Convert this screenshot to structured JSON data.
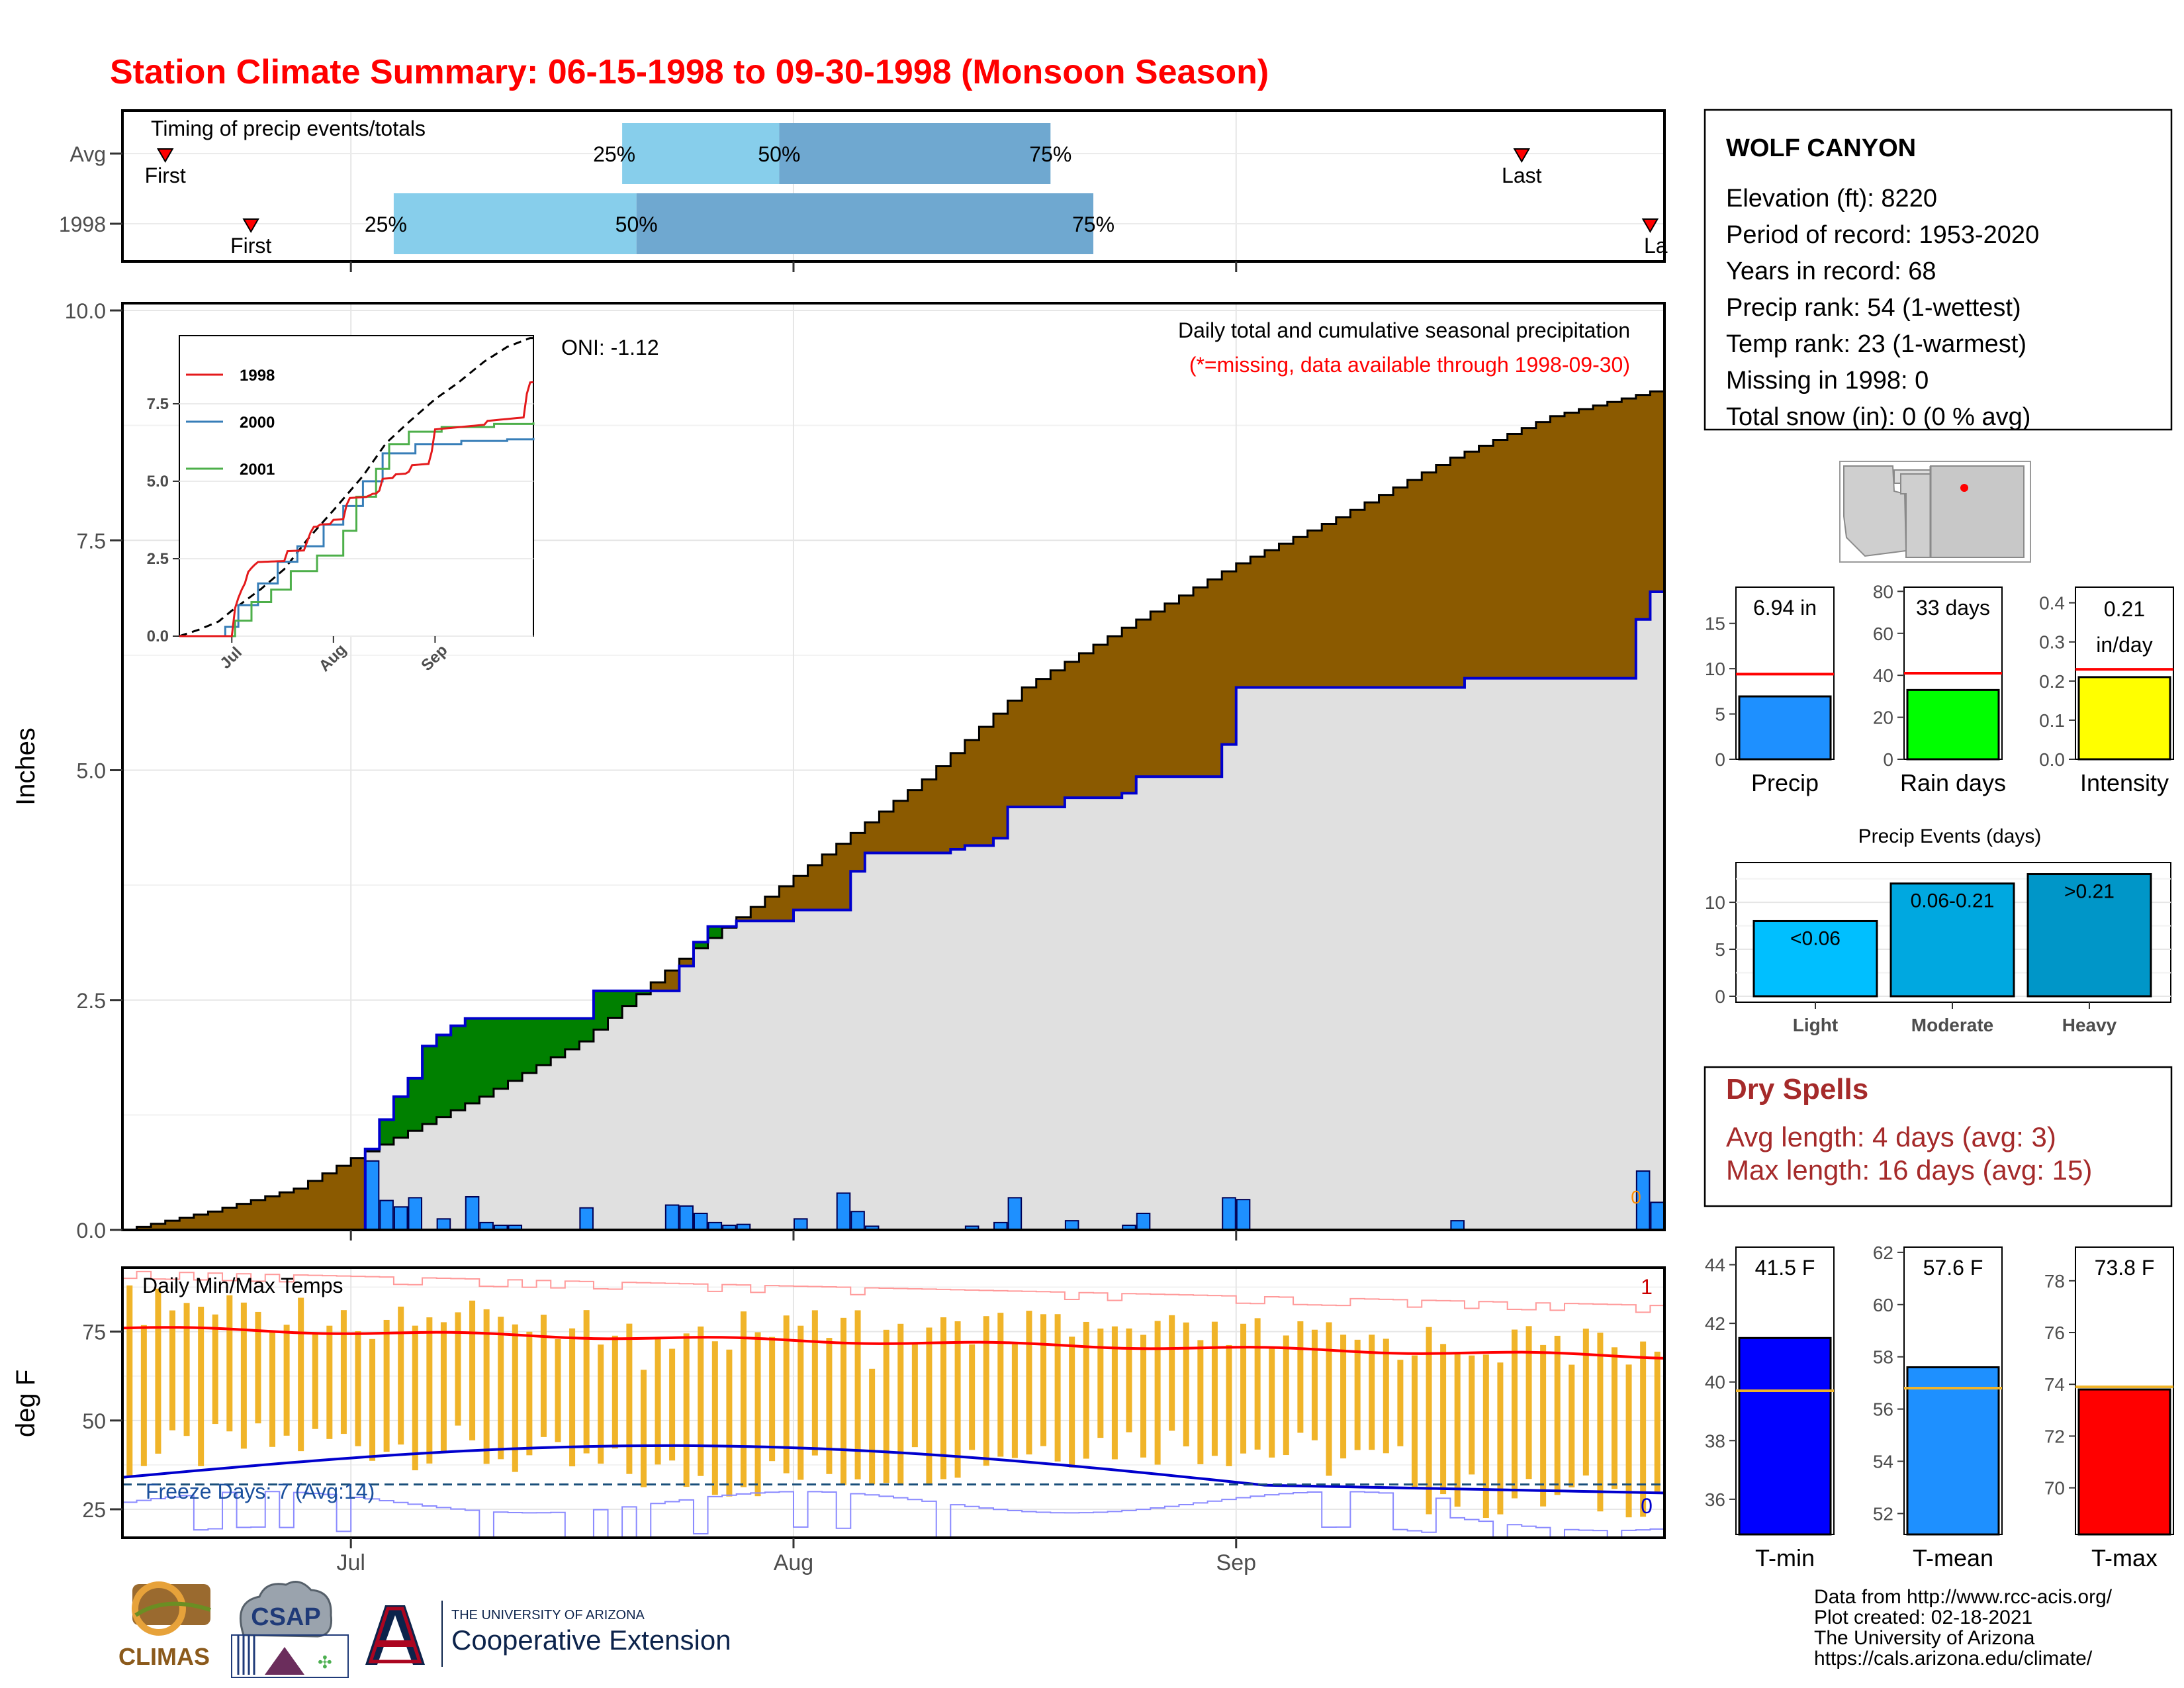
{
  "title": "Station Climate Summary: 06-15-1998 to 09-30-1998 (Monsoon Season)",
  "colors": {
    "title": "#ff0000",
    "precip_fill": "#1e90ff",
    "deficit": "#8b5a00",
    "surplus": "#008000",
    "cum_area": "#e0e0e0",
    "quartile_light": "#87ceeb",
    "quartile_dark": "#6fa8d0",
    "tmax_line": "#ff0000",
    "tmin_line": "#0000cd",
    "temp_bar": "#f0b429",
    "dry_spell": "#a52a2a"
  },
  "timing": {
    "label": "Timing of precip events/totals",
    "rows": [
      {
        "name": "Avg",
        "first": "06-18",
        "q25": "07-20",
        "q50": "07-31",
        "q75": "08-19",
        "last": "09-21"
      },
      {
        "name": "1998",
        "first": "06-24",
        "q25": "07-04",
        "q50": "07-21",
        "q75": "08-22",
        "last": "09-30"
      }
    ],
    "first_label": "First",
    "last_label": "Last",
    "last_label_clipped": "La",
    "q_labels": [
      "25%",
      "50%",
      "75%"
    ]
  },
  "main": {
    "ylabel": "Inches",
    "anno_oni": "ONI: -1.12",
    "anno_line1": "Daily total and cumulative seasonal precipitation",
    "anno_line2": "(*=missing, data available through 1998-09-30)",
    "missing_marker": "0"
  },
  "temps": {
    "ylabel": "deg F",
    "label": "Daily Min/Max Temps",
    "freeze_label": "Freeze Days: 7 (Avg:14)",
    "marker_top": "1",
    "marker_bottom": "0"
  },
  "station": {
    "name": "WOLF CANYON",
    "lines": [
      "Elevation (ft): 8220",
      "Period of record: 1953-2020",
      "Years in record: 68",
      "Precip rank: 54 (1-wettest)",
      "Temp rank: 23 (1-warmest)",
      "Missing in 1998: 0",
      "Total snow (in): 0 (0 % avg)"
    ]
  },
  "dry_spells": {
    "title": "Dry Spells",
    "line1": "Avg length: 4 days (avg: 3)",
    "line2": "Max length: 16 days (avg: 15)"
  },
  "precip_events_title": "Precip Events (days)",
  "credits": [
    "Data from http://www.rcc-acis.org/",
    "Plot created: 02-18-2021",
    "The University of Arizona",
    "https://cals.arizona.edu/climate/"
  ],
  "logos": {
    "climas": "CLIMAS",
    "csap": "CSAP",
    "ua_small": "THE UNIVERSITY OF ARIZONA",
    "ua_big": "Cooperative Extension"
  },
  "chart_data": [
    {
      "id": "timing",
      "type": "bar",
      "x_tick_labels": [
        "Jul",
        "Aug",
        "Sep"
      ],
      "x_ticks": [
        "1998-07-01",
        "1998-08-01",
        "1998-09-01"
      ],
      "xlim": [
        "1998-06-15",
        "1998-09-30"
      ],
      "categories": [
        "Avg",
        "1998"
      ]
    },
    {
      "id": "main",
      "type": "area",
      "title": "Daily total and cumulative seasonal precipitation",
      "ylabel": "Inches",
      "ylim": [
        0,
        10
      ],
      "y_ticks": [
        0.0,
        2.5,
        5.0,
        7.5,
        10.0
      ],
      "y_tick_labels": [
        "0.0",
        "2.5",
        "5.0",
        "7.5",
        "10.0"
      ],
      "x_tick_labels": [
        "Jul",
        "Aug",
        "Sep"
      ],
      "x_ticks": [
        "1998-07-01",
        "1998-08-01",
        "1998-09-01"
      ],
      "xlim": [
        "1998-06-15",
        "1998-09-30"
      ],
      "start_date": "1998-06-15",
      "avg_cumulative_keypoints": [
        [
          "1998-06-15",
          0.0
        ],
        [
          "1998-06-21",
          0.2
        ],
        [
          "1998-06-27",
          0.45
        ],
        [
          "1998-07-01",
          0.78
        ],
        [
          "1998-07-10",
          1.45
        ],
        [
          "1998-07-17",
          2.05
        ],
        [
          "1998-07-24",
          2.95
        ],
        [
          "1998-08-01",
          3.85
        ],
        [
          "1998-08-10",
          4.9
        ],
        [
          "1998-08-17",
          5.9
        ],
        [
          "1998-08-24",
          6.55
        ],
        [
          "1998-09-01",
          7.25
        ],
        [
          "1998-09-08",
          7.75
        ],
        [
          "1998-09-16",
          8.4
        ],
        [
          "1998-09-23",
          8.85
        ],
        [
          "1998-09-30",
          9.12
        ]
      ],
      "daily_precip": [
        [
          "1998-07-02",
          0.75
        ],
        [
          "1998-07-03",
          0.32
        ],
        [
          "1998-07-04",
          0.25
        ],
        [
          "1998-07-05",
          0.35
        ],
        [
          "1998-07-07",
          0.12
        ],
        [
          "1998-07-09",
          0.36
        ],
        [
          "1998-07-10",
          0.08
        ],
        [
          "1998-07-11",
          0.05
        ],
        [
          "1998-07-12",
          0.05
        ],
        [
          "1998-07-17",
          0.24
        ],
        [
          "1998-07-23",
          0.27
        ],
        [
          "1998-07-24",
          0.26
        ],
        [
          "1998-07-25",
          0.18
        ],
        [
          "1998-07-26",
          0.08
        ],
        [
          "1998-07-27",
          0.05
        ],
        [
          "1998-07-28",
          0.06
        ],
        [
          "1998-08-01",
          0.12
        ],
        [
          "1998-08-04",
          0.4
        ],
        [
          "1998-08-05",
          0.2
        ],
        [
          "1998-08-06",
          0.04
        ],
        [
          "1998-08-13",
          0.04
        ],
        [
          "1998-08-15",
          0.08
        ],
        [
          "1998-08-16",
          0.35
        ],
        [
          "1998-08-20",
          0.1
        ],
        [
          "1998-08-24",
          0.05
        ],
        [
          "1998-08-25",
          0.18
        ],
        [
          "1998-08-31",
          0.35
        ],
        [
          "1998-09-01",
          0.33
        ],
        [
          "1998-09-16",
          0.1
        ],
        [
          "1998-09-29",
          0.64
        ],
        [
          "1998-09-30",
          0.3
        ]
      ],
      "cumulative_1998_keypoints": [
        [
          "1998-07-01",
          0.0
        ],
        [
          "1998-07-02",
          0.88
        ],
        [
          "1998-07-03",
          1.2
        ],
        [
          "1998-07-04",
          1.45
        ],
        [
          "1998-07-05",
          1.65
        ],
        [
          "1998-07-06",
          2.0
        ],
        [
          "1998-07-07",
          2.12
        ],
        [
          "1998-07-08",
          2.22
        ],
        [
          "1998-07-09",
          2.3
        ],
        [
          "1998-07-17",
          2.3
        ],
        [
          "1998-07-18",
          2.6
        ],
        [
          "1998-07-23",
          2.6
        ],
        [
          "1998-07-24",
          2.87
        ],
        [
          "1998-07-25",
          3.13
        ],
        [
          "1998-07-26",
          3.3
        ],
        [
          "1998-07-28",
          3.36
        ],
        [
          "1998-08-01",
          3.48
        ],
        [
          "1998-08-04",
          3.48
        ],
        [
          "1998-08-05",
          3.9
        ],
        [
          "1998-08-06",
          4.1
        ],
        [
          "1998-08-12",
          4.14
        ],
        [
          "1998-08-13",
          4.18
        ],
        [
          "1998-08-15",
          4.26
        ],
        [
          "1998-08-16",
          4.6
        ],
        [
          "1998-08-20",
          4.7
        ],
        [
          "1998-08-24",
          4.75
        ],
        [
          "1998-08-25",
          4.93
        ],
        [
          "1998-08-31",
          5.28
        ],
        [
          "1998-09-01",
          5.9
        ],
        [
          "1998-09-16",
          5.9
        ],
        [
          "1998-09-17",
          6.0
        ],
        [
          "1998-09-28",
          6.0
        ],
        [
          "1998-09-29",
          6.64
        ],
        [
          "1998-09-30",
          6.94
        ]
      ]
    },
    {
      "id": "inset",
      "type": "line",
      "ylim": [
        0,
        9.7
      ],
      "y_ticks": [
        0.0,
        2.5,
        5.0,
        7.5
      ],
      "y_tick_labels": [
        "0.0",
        "2.5",
        "5.0",
        "7.5"
      ],
      "x_tick_labels": [
        "Jul",
        "Aug",
        "Sep"
      ],
      "series": [
        {
          "name": "1998",
          "color": "#e41a1c"
        },
        {
          "name": "2000",
          "color": "#377eb8"
        },
        {
          "name": "2001",
          "color": "#4daf4a"
        }
      ]
    },
    {
      "id": "temps",
      "type": "bar",
      "ylabel": "deg F",
      "ylim": [
        17,
        93
      ],
      "y_ticks": [
        25,
        50,
        75
      ],
      "y_tick_labels": [
        "25",
        "50",
        "75"
      ],
      "freeze_line": 32,
      "x_tick_labels": [
        "Jul",
        "Aug",
        "Sep"
      ],
      "tmax_avg_range": [
        76,
        68
      ],
      "tmin_avg_range": [
        34,
        31
      ],
      "tmin_avg_peak": 44
    },
    {
      "id": "summary_precip",
      "type": "bar",
      "categories": [
        "Precip",
        "Rain days",
        "Intensity"
      ],
      "values": [
        6.94,
        33,
        0.21
      ],
      "averages": [
        9.4,
        41,
        0.23
      ],
      "value_labels": [
        "6.94 in",
        "33 days",
        "0.21 in/day"
      ],
      "ylims": [
        [
          0,
          19
        ],
        [
          0,
          82
        ],
        [
          0,
          0.44
        ]
      ],
      "y_ticks": [
        [
          0,
          5,
          10,
          15
        ],
        [
          0,
          20,
          40,
          60,
          80
        ],
        [
          0.0,
          0.1,
          0.2,
          0.3,
          0.4
        ]
      ],
      "y_tick_labels": [
        [
          "0",
          "5",
          "10",
          "15"
        ],
        [
          "0",
          "20",
          "40",
          "60",
          "80"
        ],
        [
          "0.0",
          "0.1",
          "0.2",
          "0.3",
          "0.4"
        ]
      ],
      "fills": [
        "#1e90ff",
        "#00ff00",
        "#ffff00"
      ]
    },
    {
      "id": "precip_events",
      "type": "bar",
      "title": "Precip Events (days)",
      "categories": [
        "Light",
        "Moderate",
        "Heavy"
      ],
      "values": [
        8,
        12,
        13
      ],
      "value_labels": [
        "<0.06",
        "0.06-0.21",
        ">0.21"
      ],
      "ylim": [
        0,
        14
      ],
      "y_ticks": [
        0,
        5,
        10
      ],
      "y_tick_labels": [
        "0",
        "5",
        "10"
      ],
      "fills": [
        "#00bfff",
        "#00a8e0",
        "#0096c8"
      ]
    },
    {
      "id": "summary_temps",
      "type": "bar",
      "categories": [
        "T-min",
        "T-mean",
        "T-max"
      ],
      "values": [
        41.5,
        57.6,
        73.8
      ],
      "averages": [
        39.7,
        56.8,
        73.9
      ],
      "value_labels": [
        "41.5 F",
        "57.6 F",
        "73.8 F"
      ],
      "ylims": [
        [
          34.8,
          44.6
        ],
        [
          51.2,
          62.2
        ],
        [
          68.2,
          79.3
        ]
      ],
      "y_ticks": [
        [
          36,
          38,
          40,
          42,
          44
        ],
        [
          52,
          54,
          56,
          58,
          60,
          62
        ],
        [
          70,
          72,
          74,
          76,
          78
        ]
      ],
      "y_tick_labels": [
        [
          "36",
          "38",
          "40",
          "42",
          "44"
        ],
        [
          "52",
          "54",
          "56",
          "58",
          "60",
          "62"
        ],
        [
          "70",
          "72",
          "74",
          "76",
          "78"
        ]
      ],
      "fills": [
        "#0000ff",
        "#1e90ff",
        "#ff0000"
      ]
    }
  ]
}
